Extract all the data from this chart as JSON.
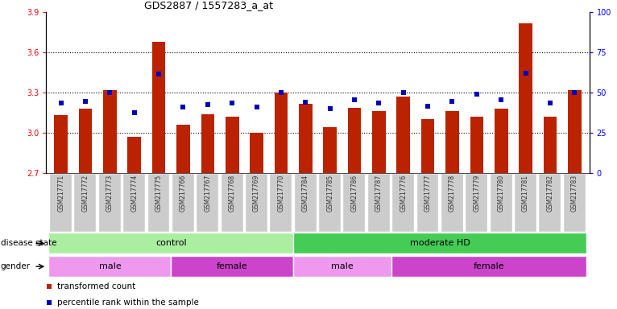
{
  "title": "GDS2887 / 1557283_a_at",
  "samples": [
    "GSM217771",
    "GSM217772",
    "GSM217773",
    "GSM217774",
    "GSM217775",
    "GSM217766",
    "GSM217767",
    "GSM217768",
    "GSM217769",
    "GSM217770",
    "GSM217784",
    "GSM217785",
    "GSM217786",
    "GSM217787",
    "GSM217776",
    "GSM217777",
    "GSM217778",
    "GSM217779",
    "GSM217780",
    "GSM217781",
    "GSM217782",
    "GSM217783"
  ],
  "bar_values": [
    3.13,
    3.18,
    3.32,
    2.97,
    3.68,
    3.06,
    3.14,
    3.12,
    3.0,
    3.3,
    3.22,
    3.04,
    3.19,
    3.16,
    3.27,
    3.1,
    3.16,
    3.12,
    3.18,
    3.82,
    3.12,
    3.32
  ],
  "percentile_values": [
    3.221,
    3.238,
    3.3,
    3.148,
    3.44,
    3.192,
    3.214,
    3.222,
    3.192,
    3.3,
    3.228,
    3.182,
    3.248,
    3.222,
    3.3,
    3.198,
    3.238,
    3.288,
    3.248,
    3.448,
    3.222,
    3.3
  ],
  "ylim_left": [
    2.7,
    3.9
  ],
  "yticks_left": [
    2.7,
    3.0,
    3.3,
    3.6,
    3.9
  ],
  "yticks_right": [
    0,
    25,
    50,
    75,
    100
  ],
  "bar_color": "#bb2200",
  "dot_color": "#0000bb",
  "disease_state_groups": [
    {
      "label": "control",
      "start": 0,
      "end": 10,
      "color": "#aaeea0"
    },
    {
      "label": "moderate HD",
      "start": 10,
      "end": 22,
      "color": "#44cc55"
    }
  ],
  "gender_groups": [
    {
      "label": "male",
      "start": 0,
      "end": 5,
      "color": "#ee99ee"
    },
    {
      "label": "female",
      "start": 5,
      "end": 10,
      "color": "#cc44cc"
    },
    {
      "label": "male",
      "start": 10,
      "end": 14,
      "color": "#ee99ee"
    },
    {
      "label": "female",
      "start": 14,
      "end": 22,
      "color": "#cc44cc"
    }
  ],
  "legend_items": [
    {
      "label": "transformed count",
      "color": "#bb2200"
    },
    {
      "label": "percentile rank within the sample",
      "color": "#0000bb"
    }
  ],
  "grid_yticks": [
    3.0,
    3.3,
    3.6
  ],
  "sample_label_color": "#333333",
  "sample_box_color": "#cccccc"
}
